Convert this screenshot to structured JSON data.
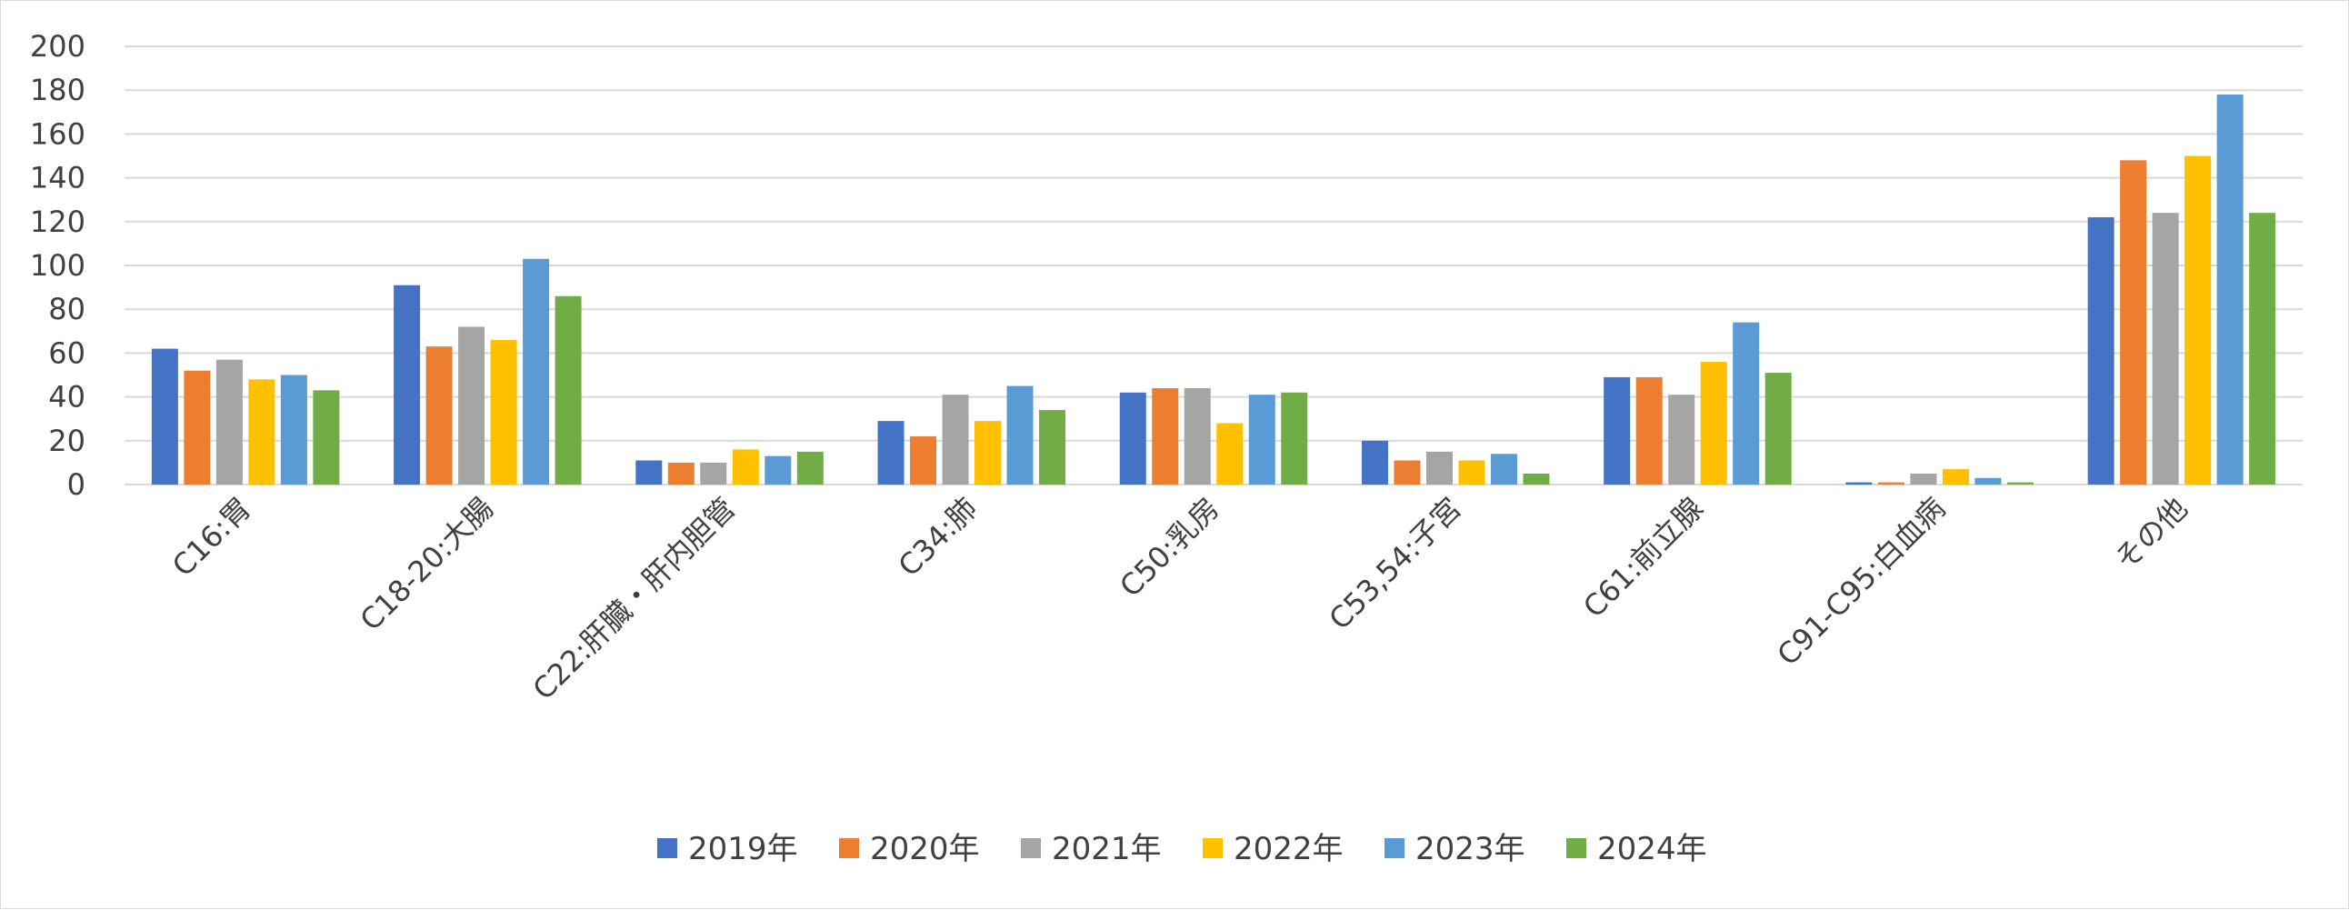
{
  "chart_data": {
    "type": "bar",
    "title": "",
    "xlabel": "",
    "ylabel": "",
    "ylim": [
      0,
      200
    ],
    "y_ticks": [
      0,
      20,
      40,
      60,
      80,
      100,
      120,
      140,
      160,
      180,
      200
    ],
    "y_tick_labels": [
      "0",
      "20",
      "40",
      "60",
      "80",
      "100",
      "120",
      "140",
      "160",
      "180",
      "200"
    ],
    "grid": true,
    "legend_position": "bottom",
    "categories": [
      "C16:胃",
      "C18-20:大腸",
      "C22:肝臓・肝内胆管",
      "C34:肺",
      "C50:乳房",
      "C53,54:子宮",
      "C61:前立腺",
      "C91-C95:白血病",
      "その他"
    ],
    "series": [
      {
        "name": "2019年",
        "color": "#4472C4",
        "values": [
          62,
          91,
          11,
          29,
          42,
          20,
          49,
          1,
          122
        ]
      },
      {
        "name": "2020年",
        "color": "#ED7D31",
        "values": [
          52,
          63,
          10,
          22,
          44,
          11,
          49,
          1,
          148
        ]
      },
      {
        "name": "2021年",
        "color": "#A5A5A5",
        "values": [
          57,
          72,
          10,
          41,
          44,
          15,
          41,
          5,
          124
        ]
      },
      {
        "name": "2022年",
        "color": "#FFC000",
        "values": [
          48,
          66,
          16,
          29,
          28,
          11,
          56,
          7,
          150
        ]
      },
      {
        "name": "2023年",
        "color": "#5B9BD5",
        "values": [
          50,
          103,
          13,
          45,
          41,
          14,
          74,
          3,
          178
        ]
      },
      {
        "name": "2024年",
        "color": "#70AD47",
        "values": [
          43,
          86,
          15,
          34,
          42,
          5,
          51,
          1,
          124
        ]
      }
    ]
  }
}
